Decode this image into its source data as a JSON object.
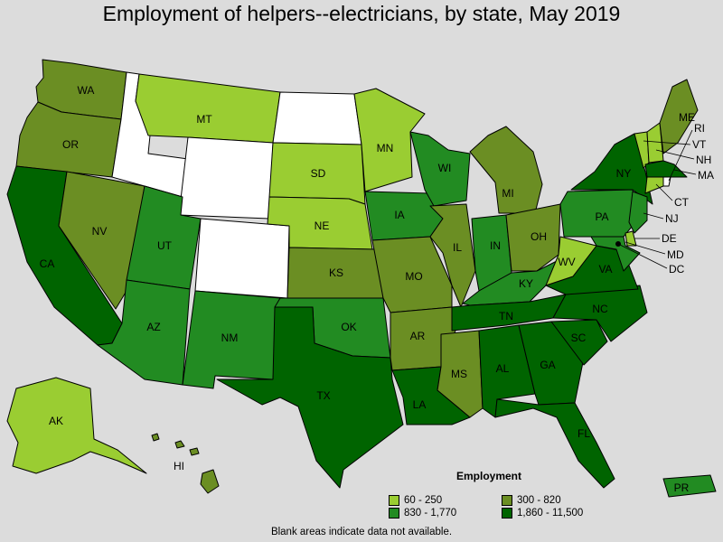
{
  "title": "Employment of helpers--electricians, by state, May 2019",
  "legend": {
    "title": "Employment",
    "items": [
      {
        "label": "60 - 250",
        "color": "#9acd32"
      },
      {
        "label": "300 - 820",
        "color": "#6b8e23"
      },
      {
        "label": "830 - 1,770",
        "color": "#228b22"
      },
      {
        "label": "1,860 - 11,500",
        "color": "#006400"
      }
    ]
  },
  "footnote": "Blank areas indicate data not available.",
  "no_data_color": "#ffffff",
  "states": {
    "WA": {
      "bin": 1
    },
    "OR": {
      "bin": 1
    },
    "CA": {
      "bin": 3
    },
    "NV": {
      "bin": 1
    },
    "ID": {
      "bin": null
    },
    "MT": {
      "bin": 0
    },
    "WY": {
      "bin": null
    },
    "UT": {
      "bin": 2
    },
    "AZ": {
      "bin": 2
    },
    "CO": {
      "bin": null
    },
    "NM": {
      "bin": 2
    },
    "ND": {
      "bin": null
    },
    "SD": {
      "bin": 0
    },
    "NE": {
      "bin": 0
    },
    "KS": {
      "bin": 1
    },
    "OK": {
      "bin": 2
    },
    "TX": {
      "bin": 3
    },
    "MN": {
      "bin": 0
    },
    "IA": {
      "bin": 2
    },
    "MO": {
      "bin": 1
    },
    "AR": {
      "bin": 1
    },
    "LA": {
      "bin": 3
    },
    "WI": {
      "bin": 2
    },
    "IL": {
      "bin": 1
    },
    "MI": {
      "bin": 1
    },
    "IN": {
      "bin": 2
    },
    "OH": {
      "bin": 1
    },
    "KY": {
      "bin": 2
    },
    "TN": {
      "bin": 3
    },
    "MS": {
      "bin": 1
    },
    "AL": {
      "bin": 3
    },
    "GA": {
      "bin": 3
    },
    "FL": {
      "bin": 3
    },
    "SC": {
      "bin": 3
    },
    "NC": {
      "bin": 3
    },
    "VA": {
      "bin": 3
    },
    "WV": {
      "bin": 0
    },
    "PA": {
      "bin": 2
    },
    "NY": {
      "bin": 3
    },
    "VT": {
      "bin": 0
    },
    "NH": {
      "bin": 0
    },
    "ME": {
      "bin": 1
    },
    "MA": {
      "bin": 3
    },
    "RI": {
      "bin": null
    },
    "CT": {
      "bin": 0
    },
    "NJ": {
      "bin": 2
    },
    "DE": {
      "bin": 0
    },
    "MD": {
      "bin": 2
    },
    "DC": {
      "bin": null
    },
    "AK": {
      "bin": 0
    },
    "HI": {
      "bin": 1
    },
    "PR": {
      "bin": 2
    }
  }
}
